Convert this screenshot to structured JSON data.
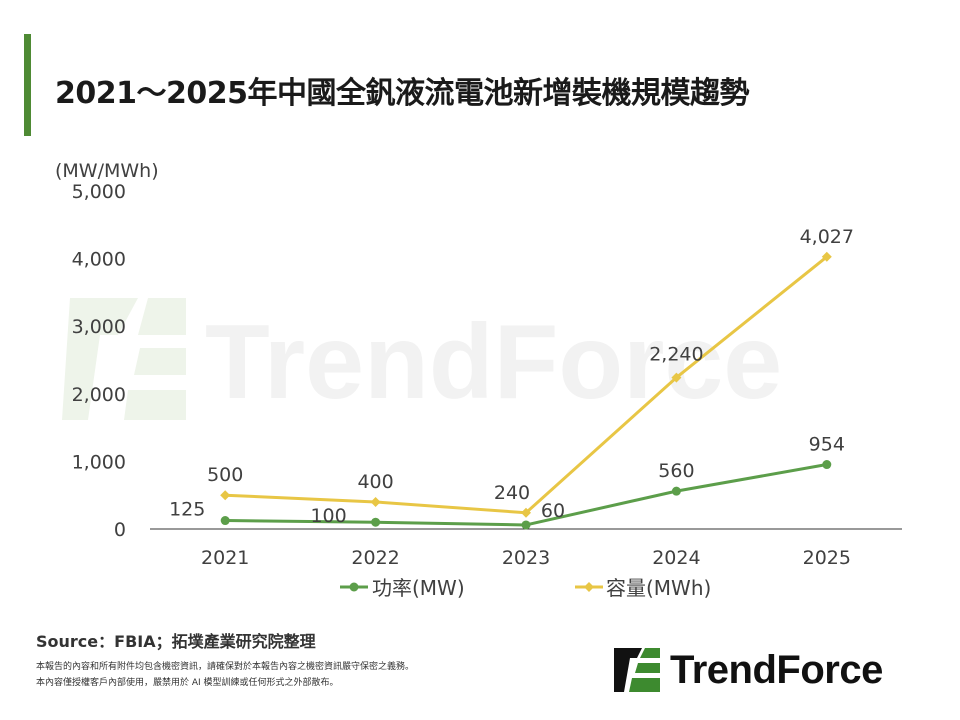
{
  "title": "2021～2025年中國全釩液流電池新增裝機規模趨勢",
  "source": "Source：FBIA；拓墣產業研究院整理",
  "disclaimer_line1": "本報告的內容和所有附件均包含機密資訊，請確保對於本報告內容之機密資訊嚴守保密之義務。",
  "disclaimer_line2": "本內容僅授權客戶內部使用，嚴禁用於 AI 模型訓練或任何形式之外部散布。",
  "watermark_text": "TrendForce",
  "brand_name": "TrendForce",
  "colors": {
    "accent": "#4e8a34",
    "power": "#5c9e4a",
    "capacity": "#e8c645",
    "axis": "#333333",
    "text": "#404040",
    "logo_green": "#3d8a2f"
  },
  "chart_data": {
    "type": "line",
    "ylabel": "(MW/MWh)",
    "categories": [
      "2021",
      "2022",
      "2023",
      "2024",
      "2025"
    ],
    "y_ticks": [
      "0",
      "1,000",
      "2,000",
      "3,000",
      "4,000",
      "5,000"
    ],
    "ylim": [
      0,
      5000
    ],
    "grid": false,
    "legend_position": "bottom",
    "series": [
      {
        "name": "功率(MW)",
        "values": [
          125,
          100,
          60,
          560,
          954
        ],
        "labels": [
          "125",
          "100",
          "60",
          "560",
          "954"
        ],
        "color": "#5c9e4a",
        "marker": "circle"
      },
      {
        "name": "容量(MWh)",
        "values": [
          500,
          400,
          240,
          2240,
          4027
        ],
        "labels": [
          "500",
          "400",
          "240",
          "2,240",
          "4,027"
        ],
        "color": "#e8c645",
        "marker": "diamond"
      }
    ]
  }
}
